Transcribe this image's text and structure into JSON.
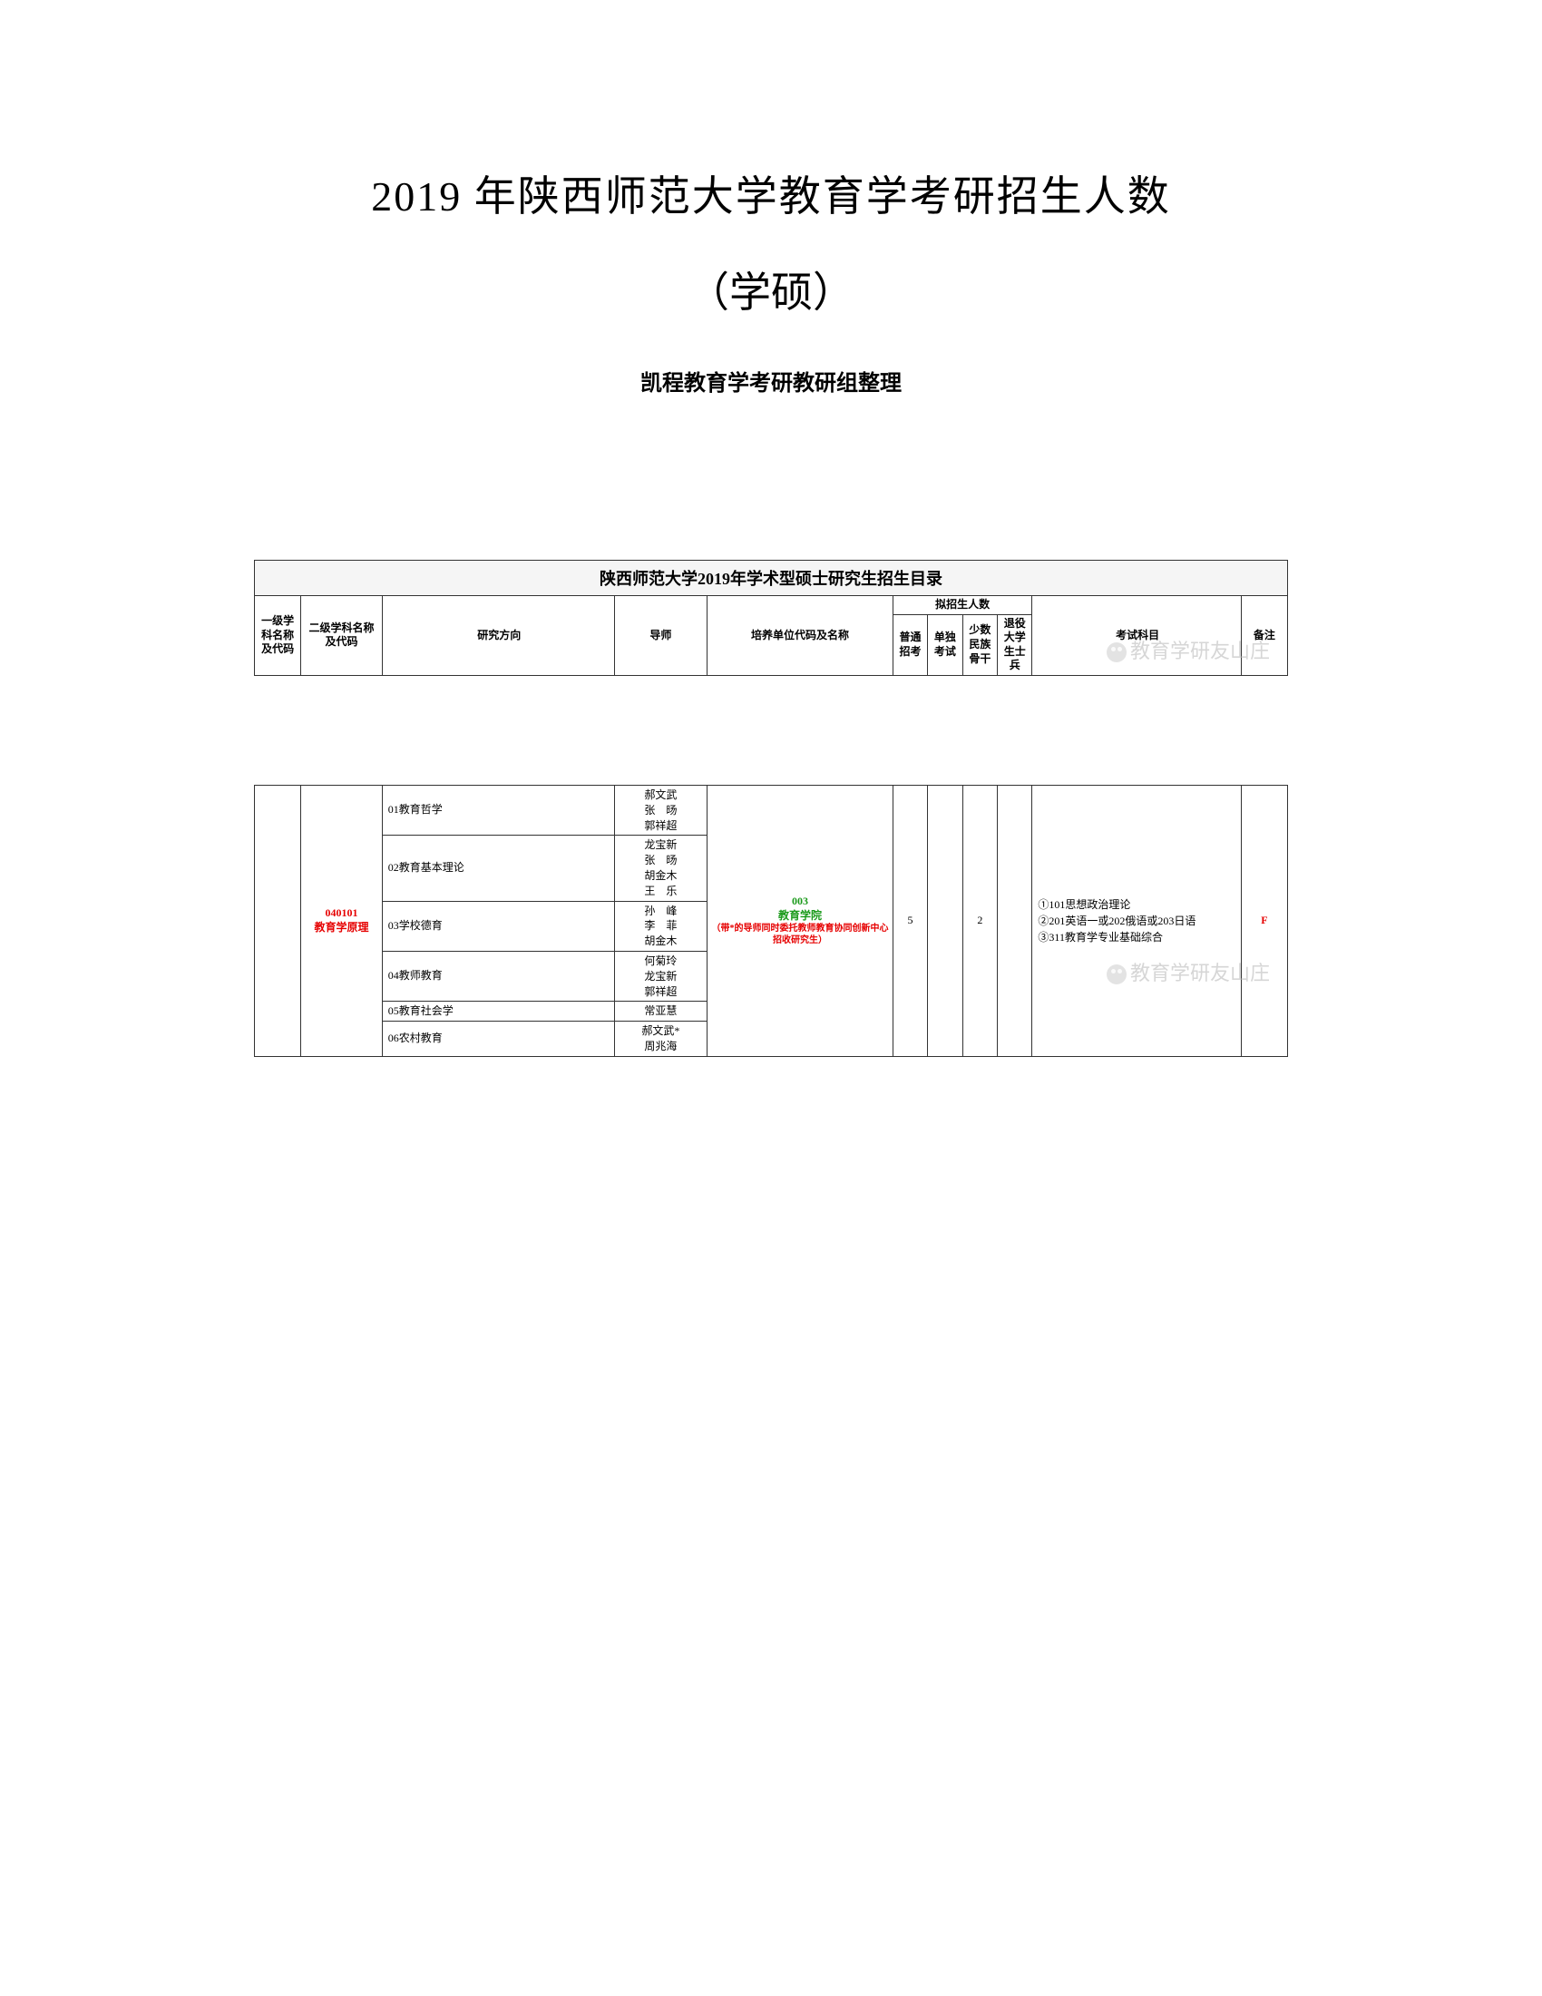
{
  "title_line1": "2019 年陕西师范大学教育学考研招生人数",
  "title_line2": "（学硕）",
  "subtitle": "凯程教育学考研教研组整理",
  "table_title": "陕西师范大学2019年学术型硕士研究生招生目录",
  "headers": {
    "level1": "一级学科名称及代码",
    "level2": "二级学科名称及代码",
    "direction": "研究方向",
    "advisor": "导师",
    "unit": "培养单位代码及名称",
    "enroll_group": "拟招生人数",
    "enroll_normal": "普通招考",
    "enroll_single": "单独考试",
    "enroll_minority": "少数民族骨干",
    "enroll_soldier": "退役大学生士兵",
    "subjects": "考试科目",
    "note": "备注"
  },
  "watermark": "教育学研友山庄",
  "section": {
    "code_name": "040101\n教育学原理",
    "unit_code": "003",
    "unit_name": "教育学院",
    "unit_note": "（带*的导师同时委托教师教育协同创新中心招收研究生）",
    "enroll_normal": "5",
    "enroll_single": "",
    "enroll_minority": "2",
    "enroll_soldier": "",
    "subjects": "①101思想政治理论\n②201英语一或202俄语或203日语\n③311教育学专业基础综合",
    "note": "F",
    "rows": [
      {
        "dir": "01教育哲学",
        "advisors": "郝文武\n张　旸\n郭祥超"
      },
      {
        "dir": "02教育基本理论",
        "advisors": "龙宝新\n张　旸\n胡金木\n王　乐"
      },
      {
        "dir": "03学校德育",
        "advisors": "孙　峰\n李　菲\n胡金木"
      },
      {
        "dir": "04教师教育",
        "advisors": "何菊玲\n龙宝新\n郭祥超"
      },
      {
        "dir": "05教育社会学",
        "advisors": "常亚慧"
      },
      {
        "dir": "06农村教育",
        "advisors": "郝文武*\n周兆海"
      }
    ]
  }
}
